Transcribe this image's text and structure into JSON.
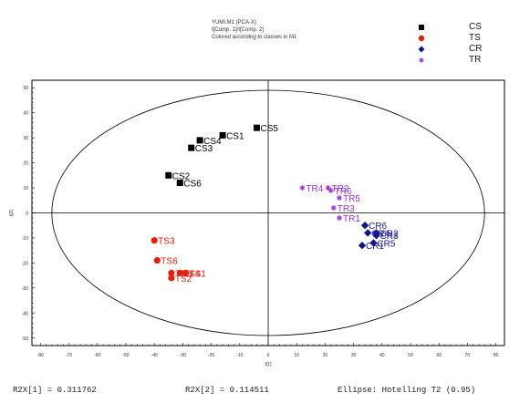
{
  "header": {
    "line1": "YUMI.M1 (PCA-X)",
    "line2": "t[Comp. 1]/t[Comp. 2]",
    "line3": "Colored according to classes in M1"
  },
  "footer": {
    "r2x1": "R2X[1] = 0.311762",
    "r2x2": "R2X[2] = 0.114511",
    "ellipse": "Ellipse: Hotelling T2 (0.95)"
  },
  "chart_data": {
    "type": "scatter",
    "xlabel": "t[1]",
    "ylabel": "t[2]",
    "xlim": [
      -83,
      83
    ],
    "ylim": [
      -53,
      53
    ],
    "xticks": [
      -80,
      -70,
      -60,
      -50,
      -40,
      -30,
      -20,
      -10,
      0,
      10,
      20,
      30,
      40,
      50,
      60,
      70,
      80
    ],
    "yticks": [
      50,
      40,
      30,
      20,
      10,
      0,
      -10,
      -20,
      -30,
      -40,
      -50
    ],
    "ellipse": {
      "cx": 0,
      "cy": 0,
      "rx": 76,
      "ry": 49
    },
    "legend_position": "top-right",
    "series": [
      {
        "name": "CS",
        "color": "#000000",
        "marker": "square",
        "points": [
          {
            "label": "CS1",
            "x": -16,
            "y": 31
          },
          {
            "label": "CS5",
            "x": -4,
            "y": 34
          },
          {
            "label": "CS4",
            "x": -24,
            "y": 29
          },
          {
            "label": "CS3",
            "x": -27,
            "y": 26
          },
          {
            "label": "CS2",
            "x": -35,
            "y": 15
          },
          {
            "label": "CS6",
            "x": -31,
            "y": 12
          }
        ]
      },
      {
        "name": "TS",
        "color": "#e02010",
        "marker": "circle",
        "points": [
          {
            "label": "TS3",
            "x": -40,
            "y": -11
          },
          {
            "label": "TS6",
            "x": -39,
            "y": -19
          },
          {
            "label": "TS1",
            "x": -29,
            "y": -24
          },
          {
            "label": "TS5",
            "x": -34,
            "y": -24
          },
          {
            "label": "TS4",
            "x": -31,
            "y": -24
          },
          {
            "label": "TS2",
            "x": -34,
            "y": -26
          }
        ]
      },
      {
        "name": "CR",
        "color": "#14148c",
        "marker": "diamond",
        "points": [
          {
            "label": "CR6",
            "x": 34,
            "y": -5
          },
          {
            "label": "CR4",
            "x": 35,
            "y": -8
          },
          {
            "label": "CR3",
            "x": 38,
            "y": -9
          },
          {
            "label": "CR2",
            "x": 38,
            "y": -8
          },
          {
            "label": "CR1",
            "x": 33,
            "y": -13
          },
          {
            "label": "CR5",
            "x": 37,
            "y": -12
          }
        ]
      },
      {
        "name": "TR",
        "color": "#9b30d8",
        "marker": "star",
        "points": [
          {
            "label": "TR4",
            "x": 12,
            "y": 10
          },
          {
            "label": "TR2",
            "x": 21,
            "y": 10
          },
          {
            "label": "TR6",
            "x": 22,
            "y": 9
          },
          {
            "label": "TR5",
            "x": 25,
            "y": 6
          },
          {
            "label": "TR3",
            "x": 23,
            "y": 2
          },
          {
            "label": "TR1",
            "x": 25,
            "y": -2
          }
        ]
      }
    ]
  }
}
